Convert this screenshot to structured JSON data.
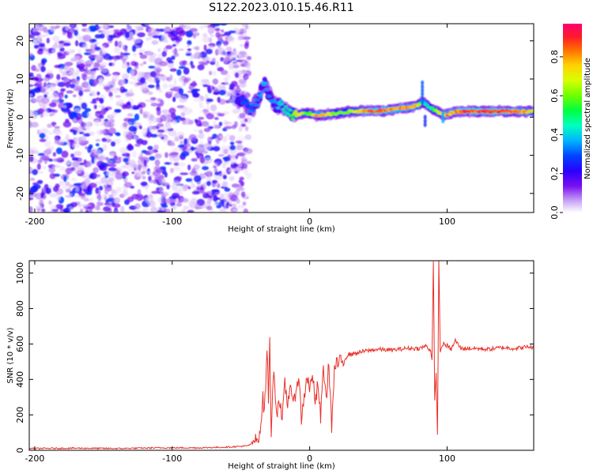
{
  "title": "S122.2023.010.15.46.R11",
  "colors": {
    "snr_line": "#e8322b",
    "colormap": [
      "#ffffff",
      "#b27cf2",
      "#7000f0",
      "#2a00ff",
      "#0040ff",
      "#00c8ff",
      "#00ff90",
      "#30ff00",
      "#b0ff00",
      "#ffe000",
      "#ff8000",
      "#ff1a3c",
      "#ff0070"
    ]
  },
  "chart_data": [
    {
      "type": "heatmap",
      "name": "spectrogram",
      "xlabel": "Height of straight line (km)",
      "ylabel": "Frequency (Hz)",
      "xlim": [
        -204,
        163
      ],
      "ylim": [
        -25,
        24.5
      ],
      "xticks": [
        -200,
        -100,
        0,
        100
      ],
      "yticks": [
        20,
        10,
        0,
        -10,
        -20
      ],
      "grid": false,
      "colorbar": {
        "label": "Normalized spectral amplitude",
        "range": [
          0.0,
          0.97
        ],
        "ticks": [
          0.0,
          0.2,
          0.4,
          0.6,
          0.8
        ]
      },
      "noise_region_x": [
        -204,
        -50
      ],
      "signal_ridge": {
        "x": [
          -53,
          -48,
          -42,
          -37,
          -33,
          -30,
          -25,
          -20,
          -15,
          -10,
          -5,
          0,
          5,
          10,
          20,
          30,
          40,
          50,
          60,
          70,
          78,
          82,
          86,
          90,
          95,
          100,
          105,
          110,
          120,
          130,
          140,
          150,
          163
        ],
        "freq_hz": [
          5,
          4,
          2,
          5,
          9,
          6,
          3,
          3,
          1,
          0.5,
          1,
          1,
          0.5,
          0.6,
          1,
          1.5,
          1.6,
          1.6,
          2,
          2.5,
          3,
          4,
          3,
          2,
          1,
          0.5,
          1.5,
          1.5,
          1.6,
          1.5,
          1.5,
          1.5,
          1.5
        ],
        "amplitude": [
          0.3,
          0.35,
          0.4,
          0.4,
          0.45,
          0.4,
          0.4,
          0.5,
          0.5,
          0.75,
          0.75,
          0.6,
          0.9,
          0.85,
          0.65,
          0.7,
          0.9,
          0.95,
          0.9,
          0.9,
          0.85,
          0.5,
          0.5,
          0.6,
          0.75,
          0.9,
          0.85,
          0.95,
          0.95,
          0.95,
          0.95,
          0.9,
          0.8
        ]
      }
    },
    {
      "type": "line",
      "name": "snr",
      "xlabel": "Height of straight line (km)",
      "ylabel": "SNR (10 * v/v)",
      "xlim": [
        -204,
        163
      ],
      "ylim": [
        0,
        1070
      ],
      "xticks": [
        -200,
        -100,
        0,
        100
      ],
      "yticks": [
        0,
        200,
        400,
        600,
        800,
        1000
      ],
      "grid": false,
      "series": [
        {
          "x": [
            -204,
            -170,
            -140,
            -110,
            -80,
            -60,
            -45,
            -38,
            -36,
            -34,
            -33,
            -32,
            -31,
            -30,
            -29,
            -28,
            -26,
            -24,
            -22,
            -20,
            -18,
            -16,
            -14,
            -12,
            -10,
            -8,
            -6,
            -4,
            -2,
            0,
            2,
            4,
            6,
            8,
            10,
            12,
            14,
            16,
            18,
            20,
            24,
            28,
            35,
            40,
            50,
            60,
            70,
            80,
            85,
            88,
            89,
            90,
            91,
            92,
            93,
            94,
            95,
            97,
            100,
            103,
            106,
            110,
            120,
            130,
            140,
            150,
            160,
            163
          ],
          "y": [
            10,
            12,
            10,
            14,
            14,
            18,
            25,
            60,
            120,
            290,
            220,
            360,
            600,
            280,
            620,
            110,
            470,
            200,
            300,
            150,
            380,
            250,
            400,
            230,
            350,
            420,
            180,
            300,
            430,
            330,
            450,
            250,
            380,
            180,
            480,
            280,
            500,
            130,
            450,
            490,
            500,
            540,
            550,
            560,
            570,
            565,
            575,
            575,
            590,
            560,
            520,
            1060,
            270,
            430,
            100,
            1070,
            560,
            600,
            590,
            570,
            620,
            575,
            575,
            570,
            580,
            575,
            585,
            575
          ]
        }
      ]
    }
  ]
}
